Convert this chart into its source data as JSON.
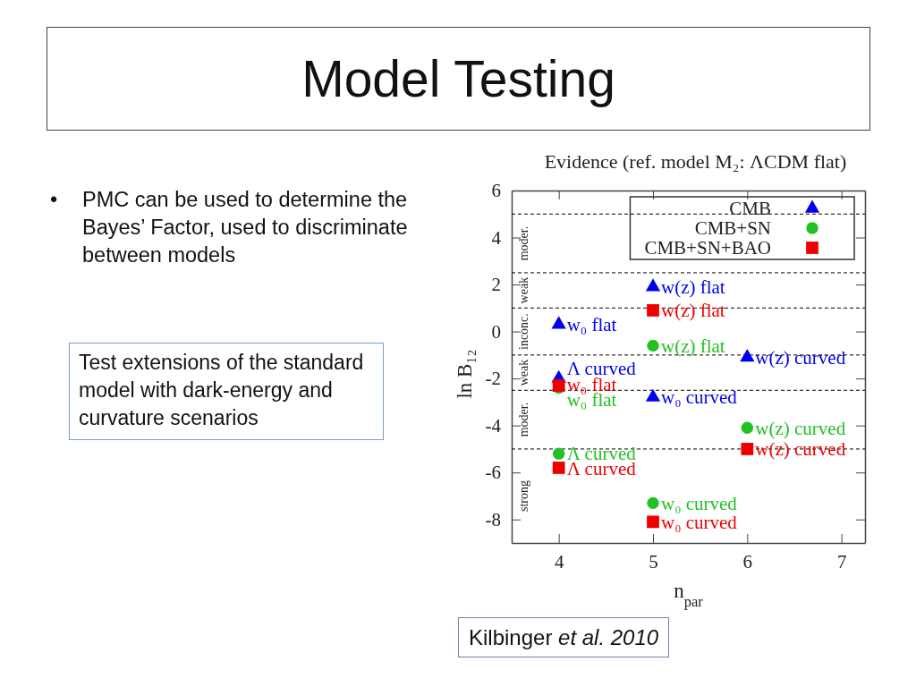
{
  "chart_data": {
    "type": "scatter",
    "title": "Model Testing",
    "subtitle": "Evidence (ref. model M₂: ΛCDM flat)",
    "xlabel": "n$_{par}$",
    "ylabel": "ln B₁₂",
    "xlim": [
      3.5,
      7.25
    ],
    "xticks": [
      4,
      5,
      6,
      7
    ],
    "ylim": [
      -9,
      6
    ],
    "yticks": [
      -8,
      -6,
      -4,
      -2,
      0,
      2,
      4,
      6
    ],
    "legend": "top right",
    "ref_lines": [
      {
        "axis": "y",
        "value": 5,
        "color": "#000000",
        "line_style": "dashed"
      },
      {
        "axis": "y",
        "value": 2.5,
        "color": "#000000",
        "line_style": "dashed"
      },
      {
        "axis": "y",
        "value": 1,
        "color": "#000000",
        "line_style": "dashed"
      },
      {
        "axis": "y",
        "value": -1,
        "color": "#000000",
        "line_style": "dashed"
      },
      {
        "axis": "y",
        "value": -2.5,
        "color": "#000000",
        "line_style": "dashed"
      },
      {
        "axis": "y",
        "value": -5,
        "color": "#000000",
        "line_style": "dashed"
      }
    ],
    "annotations": [
      "• PMC can be used to determine the Bayes’ Factor, used to discriminate between models",
      "Test extensions of the standard model with dark-energy and curvature scenarios",
      "Kilbinger et al. 2010",
      "moder.",
      "weak",
      "inconc.",
      "weak",
      "moder.",
      "strong"
    ],
    "series": [
      {
        "name": "CMB",
        "color": "#0000ee",
        "marker": "triangle",
        "x": [
          4,
          4,
          5,
          5,
          6
        ],
        "values": [
          0.3,
          -2.0,
          1.9,
          -2.8,
          -1.1
        ],
        "value_labels": [
          "w₀ flat",
          "Λ curved",
          "w(z) flat",
          "w₀ curved",
          "w(z) curved"
        ]
      },
      {
        "name": "CMB+SN",
        "color": "#22c022",
        "marker": "circle",
        "x": [
          4,
          4,
          5,
          5,
          6
        ],
        "values": [
          -2.4,
          -5.2,
          -0.6,
          -7.3,
          -4.1
        ],
        "value_labels": [
          "w₀ flat",
          "Λ curved",
          "w(z) flat",
          "w₀ curved",
          "w(z) curved"
        ]
      },
      {
        "name": "CMB+SN+BAO",
        "color": "#ee0000",
        "marker": "square",
        "x": [
          4,
          4,
          5,
          5,
          6
        ],
        "values": [
          -2.3,
          -5.8,
          0.9,
          -8.1,
          -5.0
        ],
        "value_labels": [
          "w₀ flat",
          "Λ curved",
          "w(z) flat",
          "w₀ curved",
          "w(z) curved"
        ]
      }
    ]
  }
}
